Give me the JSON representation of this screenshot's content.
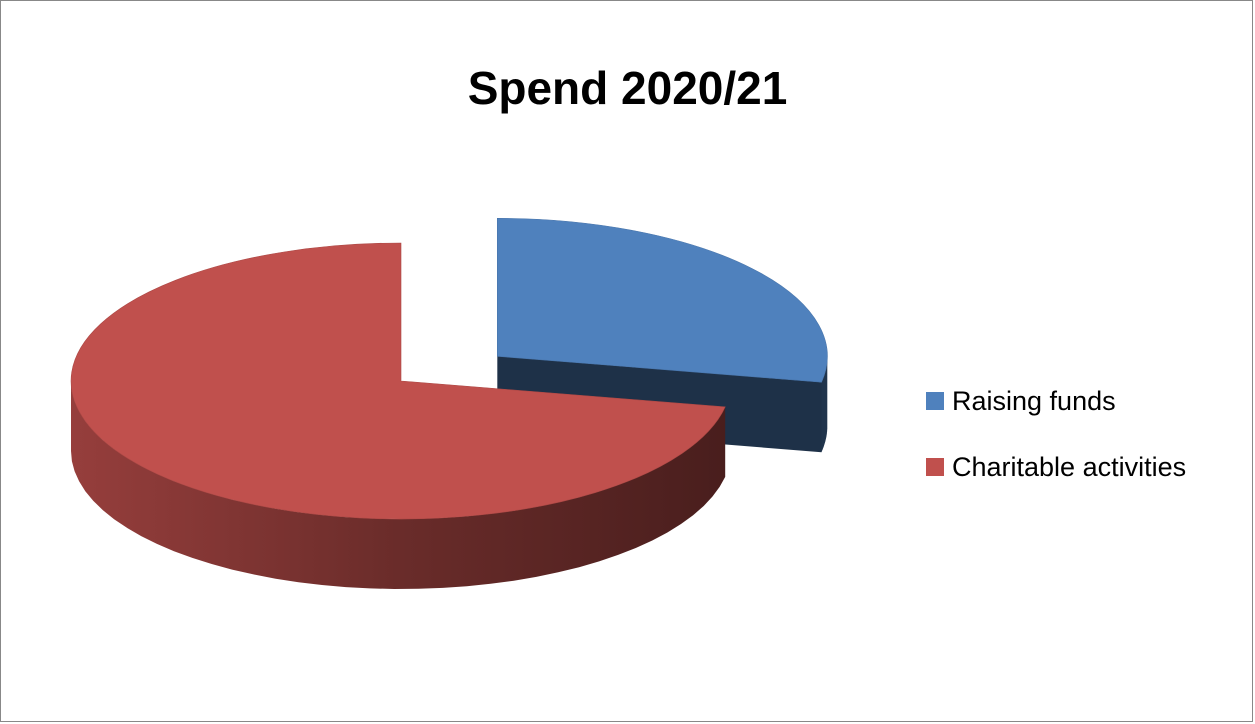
{
  "chart_data": {
    "type": "pie",
    "title": "Spend 2020/21",
    "categories": [
      "Raising funds",
      "Charitable activities"
    ],
    "values": [
      28,
      72
    ],
    "unit": "%",
    "colors": [
      "#4F81BD",
      "#C0504D"
    ],
    "exploded": [
      "Raising funds"
    ],
    "style": "3d",
    "legend": "right"
  }
}
